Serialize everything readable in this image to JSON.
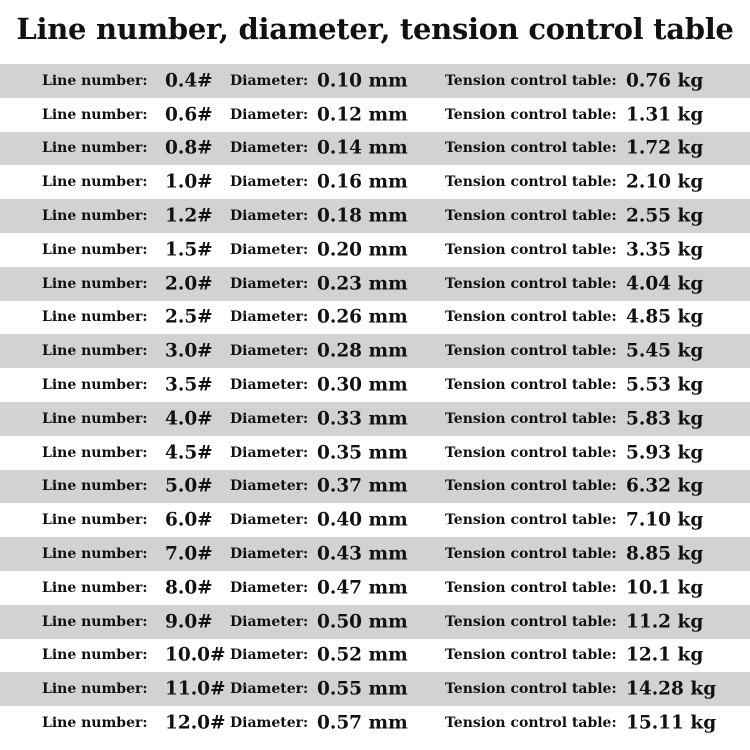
{
  "title": "Line number, diameter, tension control table",
  "labels": {
    "line": "Line number:",
    "diameter": "Diameter:",
    "tension": "Tension control table:"
  },
  "rows": [
    {
      "line": "0.4#",
      "diameter": "0.10 mm",
      "tension": "0.76 kg"
    },
    {
      "line": "0.6#",
      "diameter": "0.12 mm",
      "tension": "1.31 kg"
    },
    {
      "line": "0.8#",
      "diameter": "0.14 mm",
      "tension": "1.72 kg"
    },
    {
      "line": "1.0#",
      "diameter": "0.16 mm",
      "tension": "2.10 kg"
    },
    {
      "line": "1.2#",
      "diameter": "0.18 mm",
      "tension": "2.55 kg"
    },
    {
      "line": "1.5#",
      "diameter": "0.20 mm",
      "tension": "3.35 kg"
    },
    {
      "line": "2.0#",
      "diameter": "0.23 mm",
      "tension": "4.04 kg"
    },
    {
      "line": "2.5#",
      "diameter": "0.26 mm",
      "tension": "4.85 kg"
    },
    {
      "line": "3.0#",
      "diameter": "0.28 mm",
      "tension": "5.45 kg"
    },
    {
      "line": "3.5#",
      "diameter": "0.30 mm",
      "tension": "5.53 kg"
    },
    {
      "line": "4.0#",
      "diameter": "0.33 mm",
      "tension": "5.83 kg"
    },
    {
      "line": "4.5#",
      "diameter": "0.35 mm",
      "tension": "5.93 kg"
    },
    {
      "line": "5.0#",
      "diameter": "0.37 mm",
      "tension": "6.32 kg"
    },
    {
      "line": "6.0#",
      "diameter": "0.40 mm",
      "tension": "7.10 kg"
    },
    {
      "line": "7.0#",
      "diameter": "0.43 mm",
      "tension": "8.85 kg"
    },
    {
      "line": "8.0#",
      "diameter": "0.47 mm",
      "tension": "10.1 kg"
    },
    {
      "line": "9.0#",
      "diameter": "0.50 mm",
      "tension": "11.2 kg"
    },
    {
      "line": "10.0#",
      "diameter": "0.52 mm",
      "tension": "12.1 kg"
    },
    {
      "line": "11.0#",
      "diameter": "0.55 mm",
      "tension": "14.28 kg"
    },
    {
      "line": "12.0#",
      "diameter": "0.57 mm",
      "tension": "15.11 kg"
    }
  ],
  "colors": {
    "stripe": "#d2d2d2",
    "background": "#ffffff",
    "text": "#111111"
  }
}
